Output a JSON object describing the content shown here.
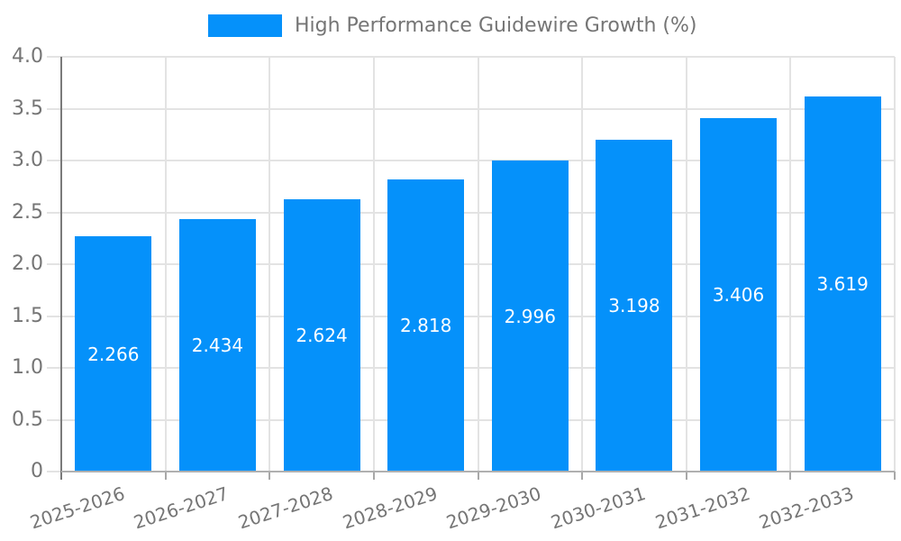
{
  "chart_data": {
    "type": "bar",
    "title": "High Performance Guidewire Growth (%)",
    "legend": {
      "label": "High Performance Guidewire Growth (%)",
      "position": "top"
    },
    "categories": [
      "2025-2026",
      "2026-2027",
      "2027-2028",
      "2028-2029",
      "2029-2030",
      "2030-2031",
      "2031-2032",
      "2032-2033"
    ],
    "values": [
      2.266,
      2.434,
      2.624,
      2.818,
      2.996,
      3.198,
      3.406,
      3.619
    ],
    "value_labels": [
      "2.266",
      "2.434",
      "2.624",
      "2.818",
      "2.996",
      "3.198",
      "3.406",
      "3.619"
    ],
    "xlabel": "",
    "ylabel": "",
    "ylim": [
      0,
      4.0
    ],
    "ytick_step": 0.5,
    "ytick_labels": [
      "0",
      "0.5",
      "1.0",
      "1.5",
      "2.0",
      "2.5",
      "3.0",
      "3.5",
      "4.0"
    ],
    "grid": true,
    "colors": {
      "bar": "#0591FA",
      "value_label": "#FFFFFF",
      "axis_text": "#757575",
      "gridline": "#E3E3E3",
      "y_axis_line": "#7A7A7A",
      "x_axis_line": "#B0B0B0"
    }
  }
}
